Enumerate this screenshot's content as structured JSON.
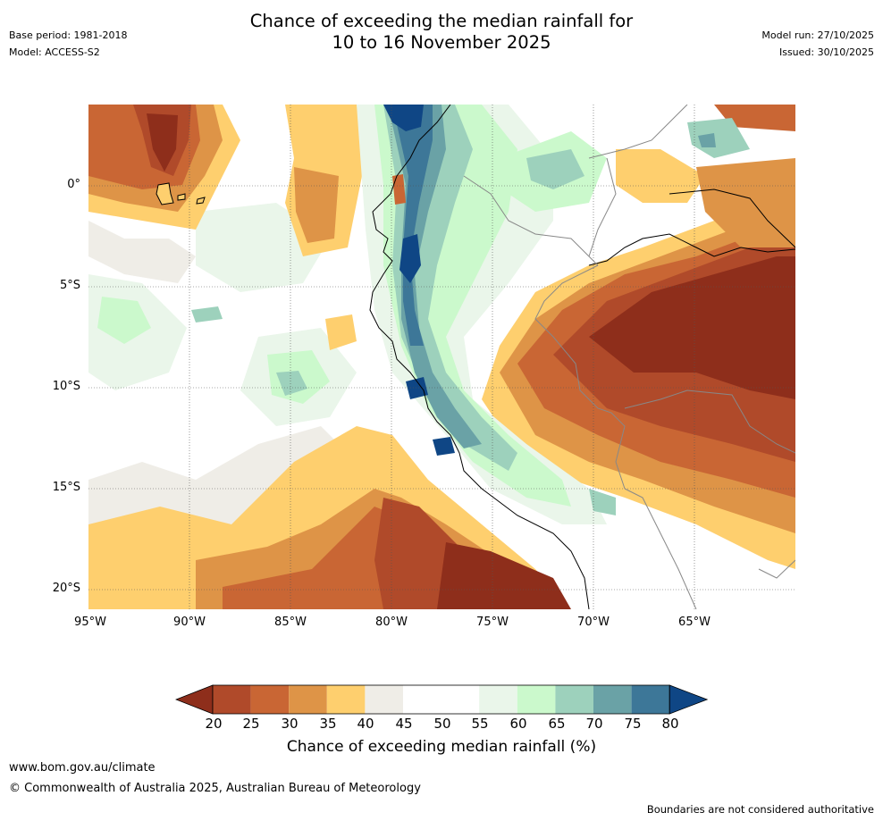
{
  "title": {
    "line1": "Chance of exceeding the median rainfall for",
    "line2": "10 to 16 November 2025"
  },
  "meta_left": {
    "base_period": "Base period: 1981-2018",
    "model": "Model: ACCESS-S2"
  },
  "meta_right": {
    "model_run": "Model run: 27/10/2025",
    "issued": "Issued: 30/10/2025"
  },
  "map": {
    "lat_labels": [
      "0°",
      "5°S",
      "10°S",
      "15°S",
      "20°S"
    ],
    "lon_labels": [
      "95°W",
      "90°W",
      "85°W",
      "80°W",
      "75°W",
      "70°W",
      "65°W"
    ]
  },
  "colorbar": {
    "ticks": [
      "20",
      "25",
      "30",
      "35",
      "40",
      "45",
      "50",
      "55",
      "60",
      "65",
      "70",
      "75",
      "80"
    ],
    "colors": [
      "#8e2e1b",
      "#b04a2a",
      "#c96634",
      "#de9447",
      "#fecf6e",
      "#efede7",
      "#ffffff",
      "#ffffff",
      "#eaf6ea",
      "#cbf9cc",
      "#9dd1bc",
      "#6aa2a6",
      "#3d7798",
      "#0f4685"
    ],
    "label": "Chance of exceeding median rainfall (%)"
  },
  "footer": {
    "website": "www.bom.gov.au/climate",
    "copyright": "© Commonwealth of Australia 2025, Australian Bureau of Meteorology",
    "disclaimer": "Boundaries are not considered authoritative"
  }
}
